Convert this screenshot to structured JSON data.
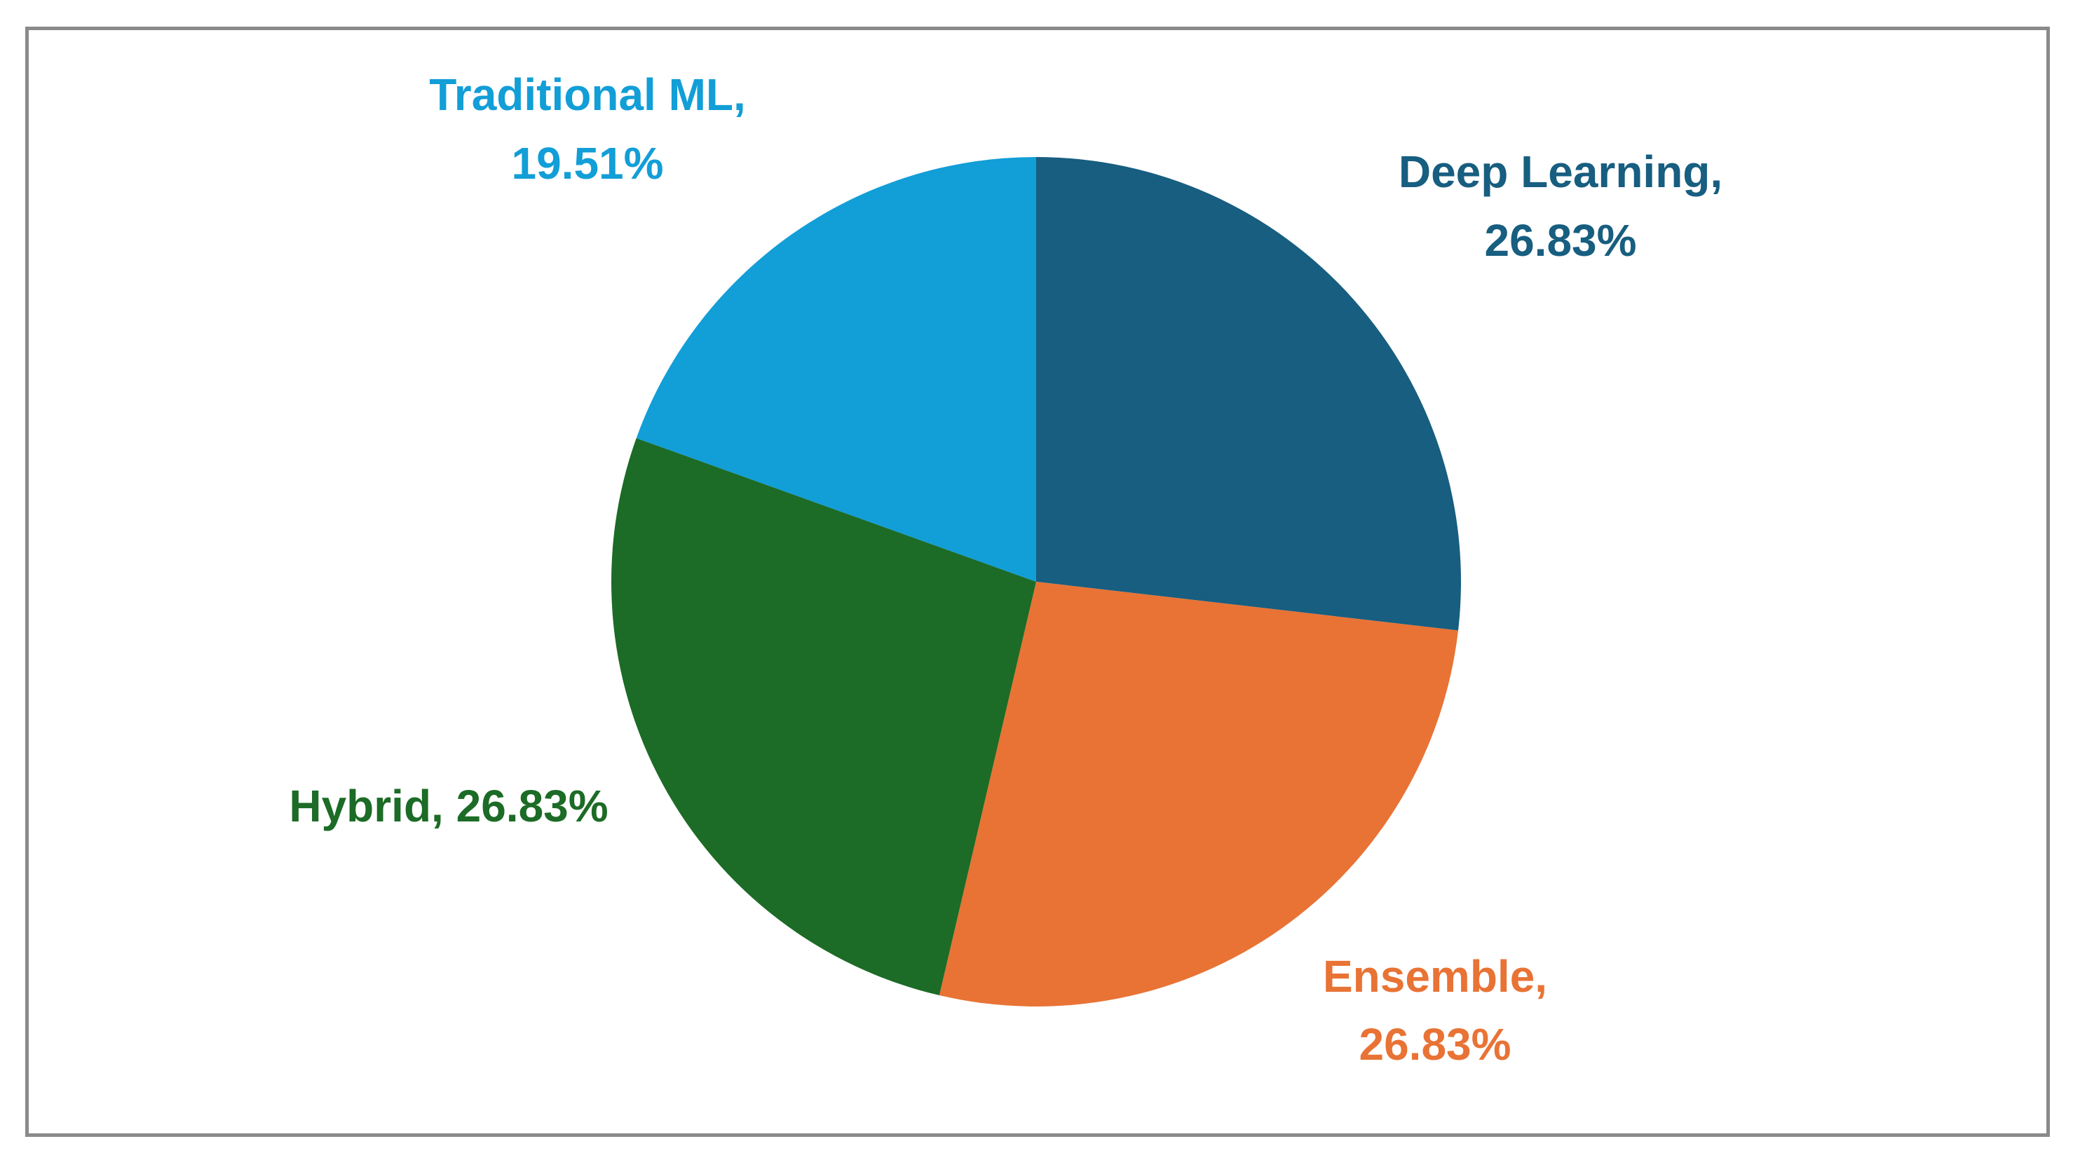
{
  "chart_data": {
    "type": "pie",
    "start_angle_deg": 0,
    "direction": "clockwise",
    "slices": [
      {
        "label": "Deep Learning",
        "value": 26.83,
        "value_text": "26.83%",
        "color": "#175e80"
      },
      {
        "label": "Ensemble",
        "value": 26.83,
        "value_text": "26.83%",
        "color": "#e87335"
      },
      {
        "label": "Hybrid",
        "value": 26.83,
        "value_text": "26.83%",
        "color": "#1c6b26"
      },
      {
        "label": "Traditional ML",
        "value": 19.51,
        "value_text": "19.51%",
        "color": "#129ed7"
      }
    ],
    "title": "",
    "legend": "none",
    "data_labels": "category name and percentage, colored by slice"
  }
}
